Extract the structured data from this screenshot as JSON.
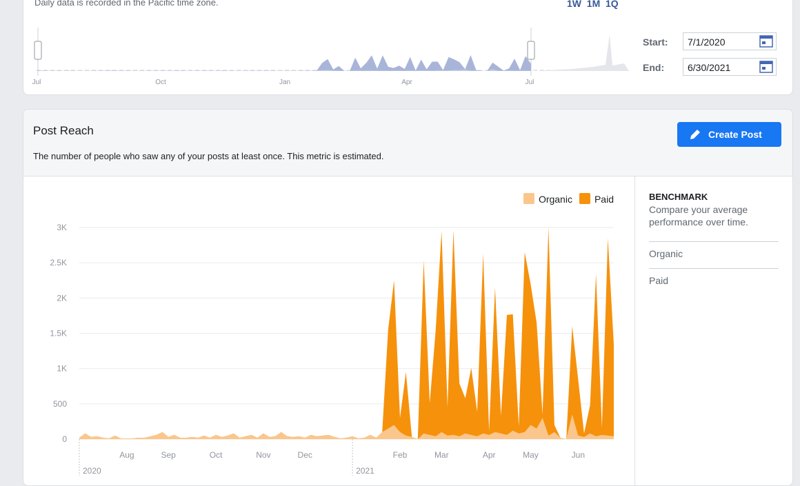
{
  "range_selector": {
    "note": "Daily data is recorded in the Pacific time zone.",
    "presets": [
      "1W",
      "1M",
      "1Q"
    ],
    "axis_labels": [
      "Jul",
      "Oct",
      "Jan",
      "Apr",
      "Jul"
    ],
    "start_label": "Start:",
    "start": "7/1/2020",
    "end_label": "End:",
    "end": "6/30/2021"
  },
  "card": {
    "title": "Post Reach",
    "description": "The number of people who saw any of your posts at least once. This metric is estimated.",
    "button": "Create Post"
  },
  "chart_data": {
    "type": "area",
    "stacked": true,
    "legend": "top-right",
    "grid": true,
    "categories": [
      null,
      null,
      null,
      null,
      null,
      null,
      null,
      null,
      "Aug",
      null,
      null,
      null,
      null,
      null,
      null,
      "Sep",
      null,
      null,
      null,
      null,
      null,
      null,
      null,
      "Oct",
      null,
      null,
      null,
      null,
      null,
      null,
      null,
      "Nov",
      null,
      null,
      null,
      null,
      null,
      null,
      "Dec",
      null,
      null,
      null,
      null,
      null,
      null,
      null,
      null,
      null,
      null,
      null,
      null,
      null,
      null,
      null,
      "Feb",
      null,
      null,
      null,
      null,
      null,
      null,
      "Mar",
      null,
      null,
      null,
      null,
      null,
      null,
      null,
      "Apr",
      null,
      null,
      null,
      null,
      null,
      null,
      "May",
      null,
      null,
      null,
      null,
      null,
      null,
      null,
      "Jun",
      null,
      null,
      null,
      null,
      null,
      null
    ],
    "year_labels": [
      "2020",
      null,
      null,
      null,
      null,
      null,
      null,
      null,
      null,
      null,
      null,
      null,
      null,
      null,
      null,
      null,
      null,
      null,
      null,
      null,
      null,
      null,
      null,
      null,
      null,
      null,
      null,
      null,
      null,
      null,
      null,
      null,
      null,
      null,
      null,
      null,
      null,
      null,
      null,
      null,
      null,
      null,
      null,
      null,
      null,
      null,
      "2021",
      null,
      null,
      null,
      null,
      null,
      null,
      null,
      null,
      null,
      null,
      null,
      null,
      null,
      null,
      null,
      null,
      null,
      null,
      null,
      null,
      null,
      null,
      null,
      null,
      null,
      null,
      null,
      null,
      null,
      null,
      null,
      null,
      null,
      null,
      null,
      null,
      null,
      null,
      null,
      null,
      null,
      null,
      null,
      null
    ],
    "series": [
      {
        "name": "Organic",
        "color": "#fbc68b",
        "values": [
          20,
          80,
          30,
          40,
          20,
          10,
          50,
          10,
          10,
          10,
          20,
          20,
          40,
          60,
          100,
          30,
          60,
          20,
          20,
          30,
          20,
          50,
          20,
          60,
          30,
          50,
          80,
          20,
          40,
          60,
          20,
          80,
          30,
          40,
          100,
          40,
          30,
          40,
          20,
          60,
          40,
          50,
          60,
          30,
          10,
          20,
          40,
          10,
          20,
          60,
          20,
          100,
          150,
          200,
          100,
          50,
          30,
          0,
          80,
          60,
          40,
          100,
          50,
          60,
          40,
          80,
          60,
          40,
          80,
          60,
          100,
          80,
          60,
          120,
          80,
          100,
          200,
          150,
          300,
          50,
          100,
          20,
          0,
          350,
          50,
          30,
          80,
          40,
          60,
          50,
          40
        ]
      },
      {
        "name": "Paid",
        "color": "#f6910c",
        "values": [
          0,
          0,
          0,
          0,
          0,
          0,
          0,
          0,
          0,
          0,
          0,
          0,
          0,
          0,
          0,
          0,
          0,
          0,
          0,
          0,
          0,
          0,
          0,
          0,
          0,
          0,
          0,
          0,
          0,
          0,
          0,
          0,
          0,
          0,
          0,
          0,
          0,
          0,
          0,
          0,
          0,
          0,
          0,
          0,
          0,
          0,
          0,
          0,
          0,
          0,
          0,
          0,
          1400,
          2050,
          200,
          900,
          0,
          0,
          2450,
          450,
          1500,
          2850,
          400,
          2900,
          750,
          500,
          950,
          350,
          2550,
          50,
          2050,
          250,
          1700,
          1650,
          100,
          2550,
          2000,
          1500,
          50,
          2950,
          100,
          0,
          0,
          1250,
          800,
          50,
          400,
          2300,
          100,
          2800,
          1300
        ]
      }
    ],
    "ylim": [
      0,
      3000
    ],
    "yticks": [
      0,
      500,
      {
        "value": 1000,
        "label": "1K"
      },
      {
        "value": 1500,
        "label": "1.5K"
      },
      {
        "value": 2000,
        "label": "2K"
      },
      {
        "value": 2500,
        "label": "2.5K"
      },
      {
        "value": 3000,
        "label": "3K"
      }
    ]
  },
  "benchmark": {
    "title": "BENCHMARK",
    "description": "Compare your average performance over time.",
    "items": [
      "Organic",
      "Paid"
    ]
  }
}
